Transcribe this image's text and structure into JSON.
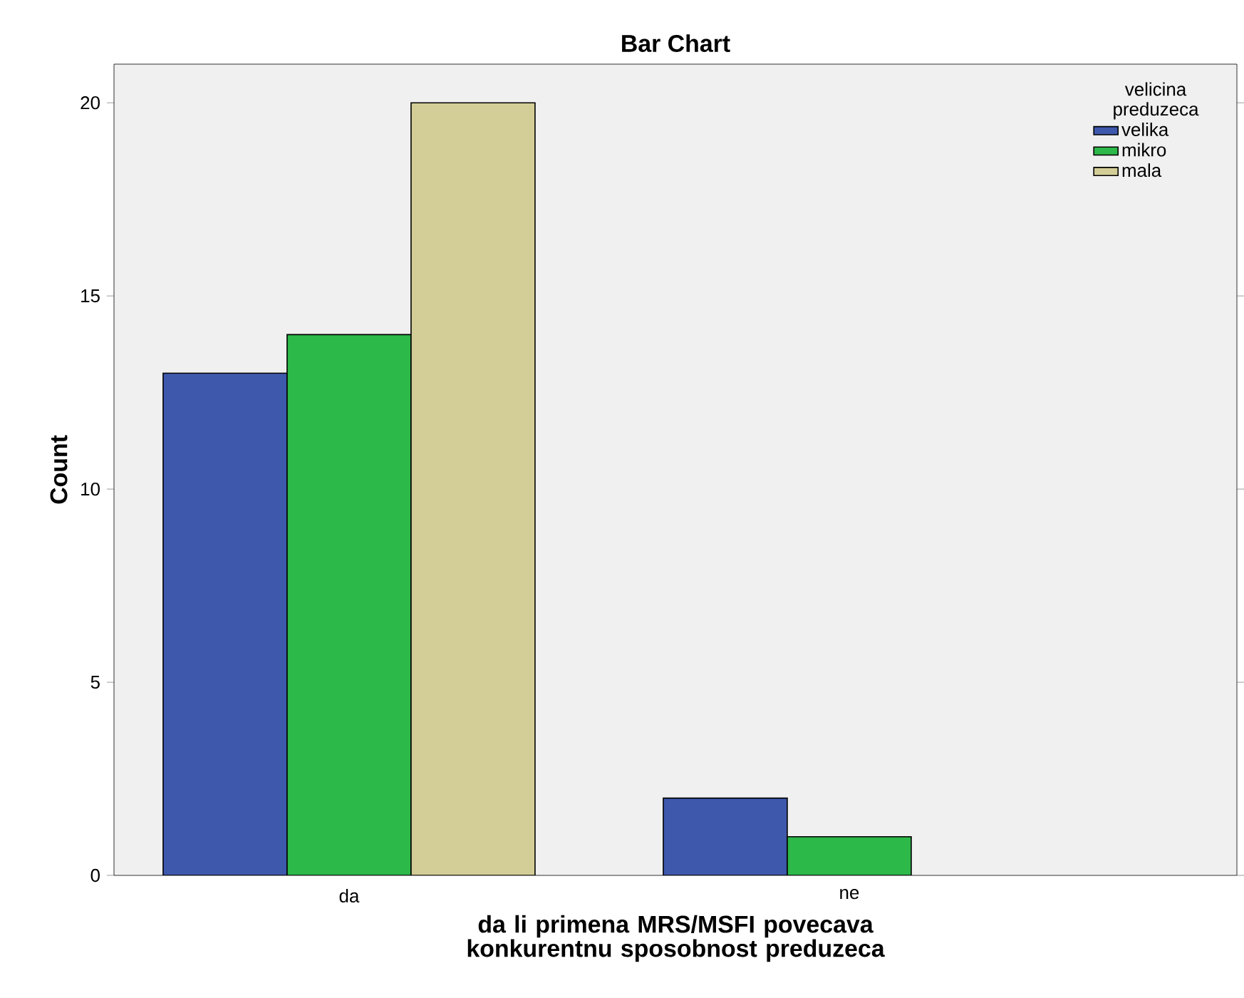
{
  "chart_data": {
    "type": "bar",
    "title": "Bar Chart",
    "xlabel": "da li primena MRS/MSFI povecava konkurentnu sposobnost preduzeca",
    "ylabel": "Count",
    "legend_title": "velicina preduzeca",
    "categories": [
      "da",
      "ne"
    ],
    "series": [
      {
        "name": "velika",
        "color": "#3e58ac",
        "values": [
          13,
          2
        ]
      },
      {
        "name": "mikro",
        "color": "#2db84a",
        "values": [
          14,
          1
        ]
      },
      {
        "name": "mala",
        "color": "#d3ce97",
        "values": [
          20,
          null
        ]
      }
    ],
    "ylim": [
      0,
      21
    ],
    "yticks": [
      0,
      5,
      10,
      15,
      20
    ],
    "grid": false,
    "legend": "top right"
  }
}
